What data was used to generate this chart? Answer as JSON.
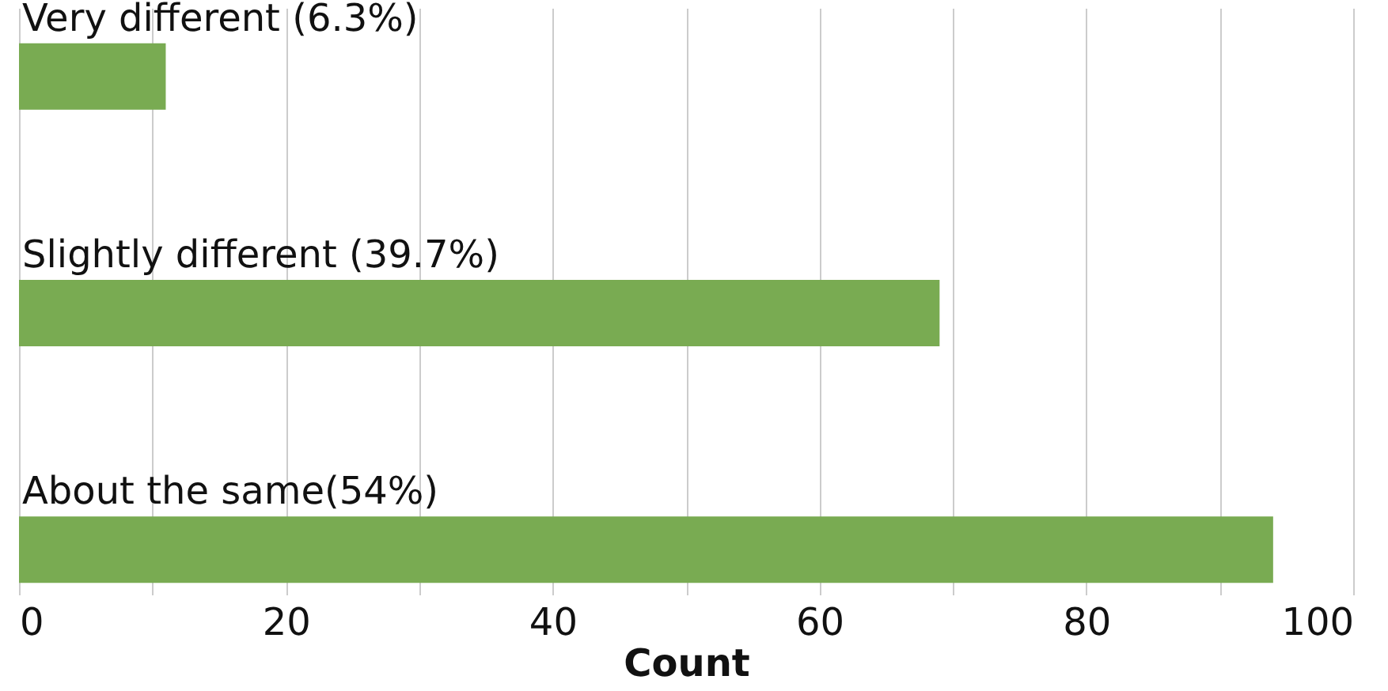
{
  "chart_data": {
    "type": "bar",
    "orientation": "horizontal",
    "xlabel": "Count",
    "categories": [
      "Very different (6.3%)",
      "Slightly different (39.7%)",
      "About the same(54%)"
    ],
    "values": [
      11,
      69,
      94
    ],
    "color": "#79ab52",
    "xlim": [
      0,
      100
    ],
    "xticks": [
      0,
      {
        "value": 10,
        "label": null
      },
      20,
      {
        "value": 30,
        "label": null
      },
      40,
      {
        "value": 50,
        "label": null
      },
      60,
      {
        "value": 70,
        "label": null
      },
      80,
      {
        "value": 90,
        "label": null
      },
      100
    ],
    "grid": "x"
  }
}
